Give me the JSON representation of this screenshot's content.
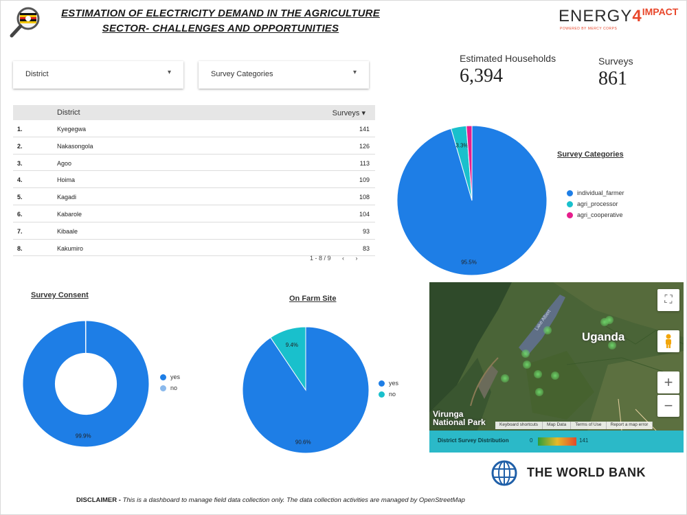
{
  "header": {
    "title_line1": "ESTIMATION OF ELECTRICITY DEMAND IN THE AGRICULTURE",
    "title_line2": "SECTOR- CHALLENGES AND OPPORTUNITIES",
    "brand_word": "ENERGY",
    "brand_num": "4",
    "brand_impact": "IMPACT",
    "brand_tagline": "POWERED BY MERCY CORPS"
  },
  "filters": {
    "district_label": "District",
    "category_label": "Survey Categories",
    "arrow": "▾"
  },
  "scorecards": {
    "households_label": "Estimated Households",
    "households_value": "6,394",
    "surveys_label": "Surveys",
    "surveys_value": "861"
  },
  "table": {
    "col_district": "District",
    "col_surveys": "Surveys ▾",
    "rows": [
      {
        "idx": "1.",
        "name": "Kyegegwa",
        "val": "141"
      },
      {
        "idx": "2.",
        "name": "Nakasongola",
        "val": "126"
      },
      {
        "idx": "3.",
        "name": "Agoo",
        "val": "113"
      },
      {
        "idx": "4.",
        "name": "Hoima",
        "val": "109"
      },
      {
        "idx": "5.",
        "name": "Kagadi",
        "val": "108"
      },
      {
        "idx": "6.",
        "name": "Kabarole",
        "val": "104"
      },
      {
        "idx": "7.",
        "name": "Kibaale",
        "val": "93"
      },
      {
        "idx": "8.",
        "name": "Kakumiro",
        "val": "83"
      }
    ],
    "pager_text": "1 - 8 / 9",
    "prev": "‹",
    "next": "›"
  },
  "chart_data": [
    {
      "type": "pie",
      "title": "Survey Categories",
      "categories": [
        "individual_farmer",
        "agri_processor",
        "agri_cooperative"
      ],
      "values": [
        95.5,
        3.3,
        1.2
      ],
      "colors": [
        "#1e7ee6",
        "#19c0cc",
        "#e61e8c"
      ],
      "labels": [
        "95.5%",
        "3.3%",
        ""
      ]
    },
    {
      "type": "pie",
      "title": "Survey Consent",
      "donut": true,
      "categories": [
        "yes",
        "no"
      ],
      "values": [
        99.9,
        0.1
      ],
      "colors": [
        "#1e7ee6",
        "#8ab9ec"
      ],
      "labels": [
        "99.9%",
        ""
      ]
    },
    {
      "type": "pie",
      "title": "On Farm Site",
      "categories": [
        "yes",
        "no"
      ],
      "values": [
        90.6,
        9.4
      ],
      "colors": [
        "#1e7ee6",
        "#19c0cc"
      ],
      "labels": [
        "90.6%",
        "9.4%"
      ]
    }
  ],
  "map": {
    "country": "Uganda",
    "park": "Virunga National Park",
    "park_line1": "Virunga",
    "park_line2": "National Park",
    "lake": "Lake Albert",
    "attr_shortcuts": "Keyboard shortcuts",
    "attr_data": "Map Data",
    "attr_terms": "Terms of Use",
    "attr_report": "Report a map error",
    "legend_title": "District Survey Distribution",
    "legend_min": "0",
    "legend_max": "141",
    "fullscreen": "⛶",
    "zoom_in": "+",
    "zoom_out": "−"
  },
  "footer": {
    "worldbank": "THE WORLD BANK",
    "disclaimer_lead": "DISCLAIMER -",
    "disclaimer_text": "This is a dashboard to manage field data collection only. The data collection activities are managed by OpenStreetMap"
  },
  "colors": {
    "blue": "#1e7ee6",
    "teal": "#19c0cc",
    "magenta": "#e61e8c",
    "map_legend_bg": "#2bb9c8"
  }
}
